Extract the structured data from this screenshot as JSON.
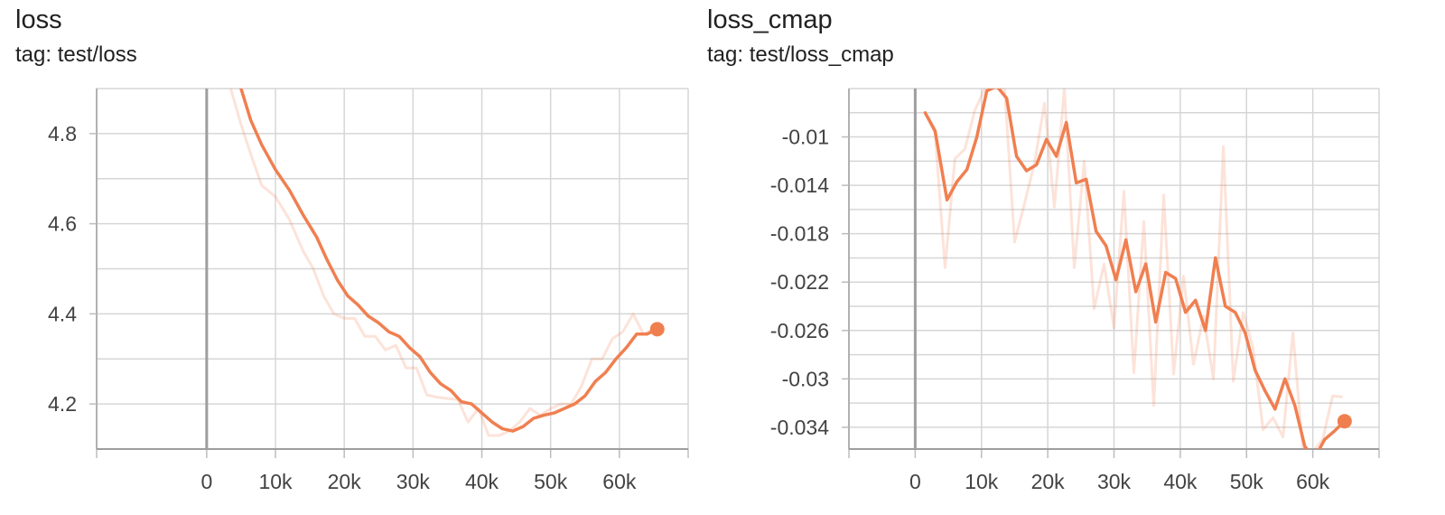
{
  "chart_data": [
    {
      "type": "line",
      "title": "loss",
      "subtitle": "tag: test/loss",
      "xlim": [
        -16000,
        70000
      ],
      "ylim": [
        4.1,
        4.9
      ],
      "x_ticks": [
        0,
        10000,
        20000,
        30000,
        40000,
        50000,
        60000
      ],
      "x_tick_labels": [
        "0",
        "10k",
        "20k",
        "30k",
        "40k",
        "50k",
        "60k"
      ],
      "y_ticks": [
        4.2,
        4.4,
        4.6,
        4.8
      ],
      "y_tick_labels": [
        "4.2",
        "4.4",
        "4.6",
        "4.8"
      ],
      "grid": true,
      "color": "#f07f50",
      "smoothed": {
        "x": [
          5000,
          6400,
          8000,
          10000,
          12000,
          14000,
          16000,
          17500,
          19000,
          20500,
          22000,
          23500,
          25000,
          26500,
          28000,
          29500,
          31000,
          32500,
          34000,
          35500,
          37000,
          38500,
          40000,
          41500,
          43000,
          44500,
          46000,
          47500,
          49000,
          50500,
          52000,
          53500,
          55000,
          56500,
          58000,
          59500,
          61000,
          62500,
          64000,
          65500
        ],
        "y": [
          4.9,
          4.83,
          4.775,
          4.72,
          4.675,
          4.62,
          4.57,
          4.52,
          4.475,
          4.44,
          4.42,
          4.395,
          4.38,
          4.36,
          4.35,
          4.325,
          4.305,
          4.27,
          4.245,
          4.23,
          4.205,
          4.2,
          4.18,
          4.16,
          4.145,
          4.14,
          4.15,
          4.168,
          4.175,
          4.18,
          4.19,
          4.2,
          4.218,
          4.25,
          4.27,
          4.3,
          4.325,
          4.355,
          4.355,
          4.366
        ]
      },
      "raw": {
        "x": [
          3500,
          5000,
          6500,
          8000,
          10000,
          12000,
          14000,
          15500,
          17000,
          18500,
          20000,
          21500,
          23000,
          24500,
          26000,
          27500,
          29000,
          30500,
          32000,
          33500,
          35000,
          36500,
          38000,
          39500,
          41000,
          42500,
          44000,
          45500,
          47000,
          48500,
          50000,
          51500,
          53000,
          54500,
          56000,
          57500,
          59000,
          60500,
          62000,
          63500,
          65000
        ],
        "y": [
          4.9,
          4.82,
          4.75,
          4.685,
          4.66,
          4.61,
          4.54,
          4.5,
          4.44,
          4.4,
          4.39,
          4.39,
          4.35,
          4.35,
          4.32,
          4.33,
          4.28,
          4.28,
          4.22,
          4.215,
          4.212,
          4.21,
          4.16,
          4.19,
          4.13,
          4.13,
          4.14,
          4.16,
          4.19,
          4.175,
          4.19,
          4.2,
          4.2,
          4.24,
          4.3,
          4.3,
          4.345,
          4.36,
          4.4,
          4.355,
          4.366
        ]
      },
      "last_point": {
        "x": 65500,
        "y": 4.366
      }
    },
    {
      "type": "line",
      "title": "loss_cmap",
      "subtitle": "tag: test/loss_cmap",
      "xlim": [
        -10000,
        70000
      ],
      "ylim": [
        -0.0358,
        -0.006
      ],
      "x_ticks": [
        0,
        10000,
        20000,
        30000,
        40000,
        50000,
        60000
      ],
      "x_tick_labels": [
        "0",
        "10k",
        "20k",
        "30k",
        "40k",
        "50k",
        "60k"
      ],
      "y_ticks": [
        -0.01,
        -0.014,
        -0.018,
        -0.022,
        -0.026,
        -0.03,
        -0.034
      ],
      "y_tick_labels": [
        "-0.01",
        "-0.014",
        "-0.018",
        "-0.022",
        "-0.026",
        "-0.03",
        "-0.034"
      ],
      "grid": true,
      "color": "#f07f50",
      "smoothed": {
        "x": [
          1500,
          3000,
          4800,
          6300,
          7800,
          9300,
          10800,
          12300,
          13800,
          15300,
          16800,
          18300,
          19800,
          21300,
          22800,
          24300,
          25800,
          27300,
          28800,
          30300,
          31800,
          33300,
          34800,
          36300,
          37800,
          39300,
          40800,
          42300,
          43800,
          45300,
          46800,
          48300,
          49800,
          51300,
          52800,
          54300,
          55800,
          57300,
          58800,
          60300,
          61800,
          63300,
          64800
        ],
        "y": [
          -0.008,
          -0.0095,
          -0.0152,
          -0.0137,
          -0.0127,
          -0.01,
          -0.0062,
          -0.0058,
          -0.0068,
          -0.0116,
          -0.0128,
          -0.0123,
          -0.0102,
          -0.0116,
          -0.0088,
          -0.0138,
          -0.0135,
          -0.0178,
          -0.019,
          -0.0218,
          -0.0185,
          -0.0228,
          -0.0205,
          -0.0253,
          -0.0212,
          -0.0217,
          -0.0245,
          -0.0235,
          -0.026,
          -0.02,
          -0.024,
          -0.0245,
          -0.0262,
          -0.0293,
          -0.031,
          -0.0325,
          -0.03,
          -0.0322,
          -0.0356,
          -0.0365,
          -0.035,
          -0.0343,
          -0.0335
        ]
      },
      "raw": {
        "x": [
          1500,
          3000,
          4500,
          6000,
          7500,
          9000,
          10500,
          12000,
          13500,
          15000,
          16500,
          18000,
          19500,
          21000,
          22500,
          24000,
          25500,
          27000,
          28500,
          30000,
          31500,
          33000,
          34500,
          36000,
          37500,
          39000,
          40500,
          42000,
          43500,
          45000,
          46500,
          48000,
          49500,
          51000,
          52500,
          54000,
          55500,
          57000,
          58500,
          60000,
          61500,
          63000,
          64500
        ],
        "y": [
          -0.008,
          -0.0097,
          -0.0208,
          -0.0118,
          -0.011,
          -0.0078,
          -0.006,
          -0.006,
          -0.006,
          -0.0187,
          -0.0155,
          -0.0122,
          -0.0072,
          -0.0158,
          -0.006,
          -0.0208,
          -0.012,
          -0.0242,
          -0.0205,
          -0.0258,
          -0.0145,
          -0.0295,
          -0.017,
          -0.0322,
          -0.0148,
          -0.0296,
          -0.0215,
          -0.0288,
          -0.0248,
          -0.03,
          -0.0108,
          -0.0302,
          -0.0245,
          -0.0275,
          -0.0342,
          -0.0332,
          -0.0348,
          -0.0262,
          -0.0358,
          -0.036,
          -0.035,
          -0.0314,
          -0.0315
        ]
      },
      "last_point": {
        "x": 64800,
        "y": -0.0335
      }
    }
  ]
}
